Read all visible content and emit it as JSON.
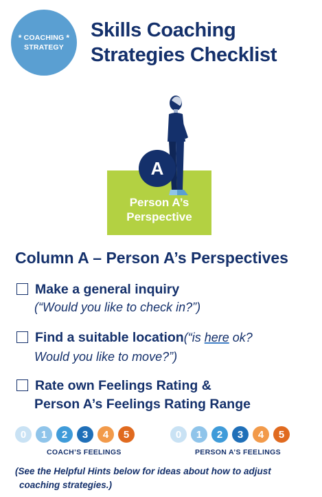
{
  "badge": {
    "line1": "COACHING",
    "line2": "STRATEGY",
    "star": "*"
  },
  "title": {
    "line1": "Skills Coaching",
    "line2": "Strategies Checklist"
  },
  "hero": {
    "letter": "A",
    "line1": "Person A’s",
    "line2": "Perspective"
  },
  "column_heading": "Column A –  Person A’s Perspectives",
  "items": [
    {
      "main": "Make a general inquiry",
      "sub": "(“Would you like to check in?”)"
    },
    {
      "main": "Find a suitable location",
      "sub_a": "(“is ",
      "sub_link": "here",
      "sub_b": " ok?",
      "sub2": "Would you like to move?”)"
    },
    {
      "main1": "Rate own Feelings Rating &",
      "main2": "Person A’s Feelings Rating Range"
    }
  ],
  "scales": {
    "values": [
      "0",
      "1",
      "2",
      "3",
      "4",
      "5"
    ],
    "coach_label": "COACH’S FEELINGS",
    "person_label": "PERSON A’S FEELINGS"
  },
  "note": {
    "line1": "(See the Helpful Hints below for ideas about how to adjust",
    "line2": "coaching strategies.)"
  },
  "colors": {
    "navy": "#14306b",
    "badge_blue": "#5a9fd2",
    "green": "#b3d142"
  }
}
